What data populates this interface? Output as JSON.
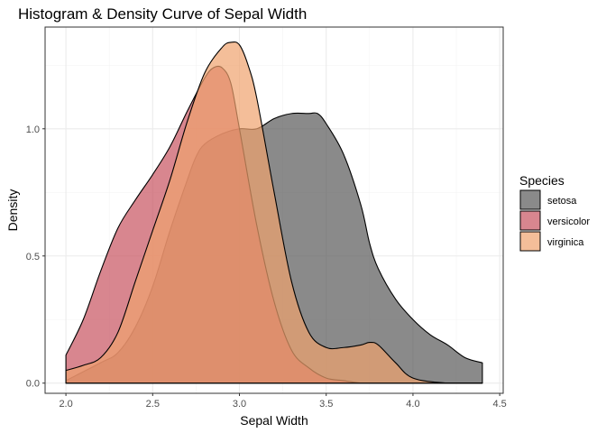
{
  "chart_data": {
    "type": "area",
    "title": "Histogram & Density Curve of Sepal Width",
    "xlabel": "Sepal Width",
    "ylabel": "Density",
    "xlim": [
      1.88,
      4.52
    ],
    "ylim": [
      -0.04,
      1.4
    ],
    "x_ticks": [
      "2.0",
      "2.5",
      "3.0",
      "3.5",
      "4.0",
      "4.5"
    ],
    "y_ticks": [
      "0.0",
      "0.5",
      "1.0"
    ],
    "grid": true,
    "legend": {
      "title": "Species",
      "position": "right"
    },
    "series": [
      {
        "name": "setosa",
        "color": "#595959",
        "x": [
          2.0,
          2.2,
          2.3,
          2.4,
          2.5,
          2.6,
          2.7,
          2.75,
          2.8,
          2.9,
          3.0,
          3.1,
          3.2,
          3.3,
          3.4,
          3.45,
          3.5,
          3.6,
          3.7,
          3.75,
          3.8,
          3.9,
          4.0,
          4.1,
          4.2,
          4.3,
          4.4
        ],
        "y": [
          0.01,
          0.08,
          0.12,
          0.22,
          0.38,
          0.6,
          0.8,
          0.89,
          0.94,
          0.98,
          1.0,
          1.0,
          1.04,
          1.06,
          1.06,
          1.06,
          1.02,
          0.9,
          0.7,
          0.55,
          0.45,
          0.33,
          0.25,
          0.19,
          0.15,
          0.1,
          0.08
        ]
      },
      {
        "name": "versicolor",
        "color": "#c8525f",
        "x": [
          2.0,
          2.1,
          2.2,
          2.3,
          2.4,
          2.5,
          2.6,
          2.7,
          2.8,
          2.85,
          2.9,
          2.95,
          3.0,
          3.1,
          3.2,
          3.3,
          3.4,
          3.5,
          3.6,
          3.7,
          3.8,
          3.9,
          4.0,
          4.2,
          4.4
        ],
        "y": [
          0.11,
          0.25,
          0.44,
          0.61,
          0.72,
          0.82,
          0.93,
          1.07,
          1.2,
          1.24,
          1.24,
          1.18,
          1.0,
          0.62,
          0.32,
          0.13,
          0.06,
          0.02,
          0.01,
          0.0,
          0.0,
          0.0,
          0.0,
          0.0,
          0.0
        ]
      },
      {
        "name": "virginica",
        "color": "#efa26e",
        "x": [
          2.0,
          2.1,
          2.2,
          2.3,
          2.4,
          2.5,
          2.6,
          2.7,
          2.8,
          2.9,
          2.95,
          3.0,
          3.05,
          3.1,
          3.2,
          3.3,
          3.4,
          3.5,
          3.6,
          3.7,
          3.75,
          3.8,
          3.9,
          4.0,
          4.2,
          4.4
        ],
        "y": [
          0.05,
          0.07,
          0.1,
          0.2,
          0.4,
          0.6,
          0.8,
          1.03,
          1.22,
          1.32,
          1.34,
          1.33,
          1.25,
          1.12,
          0.75,
          0.4,
          0.2,
          0.14,
          0.14,
          0.15,
          0.16,
          0.15,
          0.08,
          0.02,
          0.0,
          0.0
        ]
      }
    ]
  }
}
